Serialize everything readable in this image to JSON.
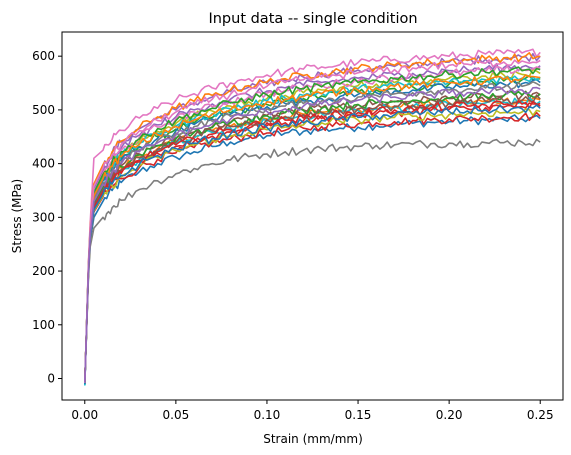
{
  "chart_data": {
    "type": "line",
    "title": "Input data -- single condition",
    "xlabel": "Strain (mm/mm)",
    "ylabel": "Stress (MPa)",
    "xlim": [
      -0.0125,
      0.2625
    ],
    "ylim": [
      -40,
      645
    ],
    "xticks": [
      0.0,
      0.05,
      0.1,
      0.15,
      0.2,
      0.25
    ],
    "xtick_labels": [
      "0.00",
      "0.05",
      "0.10",
      "0.15",
      "0.20",
      "0.25"
    ],
    "yticks": [
      0,
      100,
      200,
      300,
      400,
      500,
      600
    ],
    "ytick_labels": [
      "0",
      "100",
      "200",
      "300",
      "400",
      "500",
      "600"
    ],
    "grid": false,
    "legend": "none",
    "x": [
      0.0,
      0.001,
      0.002,
      0.003,
      0.005,
      0.01,
      0.015,
      0.02,
      0.03,
      0.04,
      0.05,
      0.06,
      0.07,
      0.08,
      0.09,
      0.1,
      0.11,
      0.12,
      0.13,
      0.14,
      0.15,
      0.16,
      0.17,
      0.18,
      0.19,
      0.2,
      0.21,
      0.22,
      0.23,
      0.24,
      0.25
    ],
    "series": [
      {
        "color": "#1f77b4",
        "values": [
          -12,
          90,
          190,
          255,
          300,
          330,
          350,
          365,
          385,
          400,
          412,
          422,
          432,
          440,
          447,
          452,
          457,
          460,
          463,
          466,
          468,
          471,
          473,
          475,
          477,
          478,
          480,
          481,
          482,
          483,
          484
        ]
      },
      {
        "color": "#ff7f0e",
        "values": [
          -8,
          95,
          200,
          265,
          325,
          355,
          375,
          392,
          412,
          428,
          441,
          452,
          462,
          470,
          477,
          483,
          488,
          492,
          496,
          499,
          502,
          505,
          507,
          509,
          511,
          513,
          514,
          516,
          517,
          518,
          519
        ]
      },
      {
        "color": "#2ca02c",
        "values": [
          -10,
          100,
          205,
          270,
          340,
          370,
          392,
          410,
          432,
          450,
          464,
          476,
          486,
          495,
          503,
          510,
          516,
          521,
          526,
          530,
          533,
          537,
          540,
          543,
          545,
          548,
          550,
          552,
          554,
          556,
          558
        ]
      },
      {
        "color": "#d62728",
        "values": [
          -6,
          92,
          195,
          258,
          310,
          338,
          357,
          372,
          393,
          408,
          420,
          430,
          439,
          446,
          452,
          457,
          462,
          466,
          469,
          472,
          474,
          476,
          478,
          480,
          481,
          483,
          484,
          485,
          486,
          487,
          488
        ]
      },
      {
        "color": "#9467bd",
        "values": [
          -9,
          98,
          208,
          280,
          360,
          395,
          420,
          440,
          465,
          485,
          500,
          513,
          524,
          534,
          542,
          549,
          555,
          561,
          566,
          570,
          574,
          578,
          581,
          584,
          587,
          589,
          592,
          594,
          596,
          598,
          600
        ]
      },
      {
        "color": "#8c564b",
        "values": [
          -7,
          96,
          200,
          266,
          330,
          360,
          380,
          396,
          418,
          434,
          448,
          459,
          469,
          477,
          484,
          490,
          495,
          500,
          504,
          507,
          510,
          513,
          515,
          517,
          519,
          521,
          523,
          524,
          526,
          527,
          528
        ]
      },
      {
        "color": "#e377c2",
        "values": [
          -11,
          102,
          215,
          290,
          410,
          425,
          445,
          462,
          485,
          503,
          518,
          530,
          541,
          550,
          558,
          565,
          571,
          576,
          580,
          584,
          588,
          591,
          594,
          596,
          598,
          600,
          602,
          604,
          605,
          606,
          607
        ]
      },
      {
        "color": "#7f7f7f",
        "values": [
          -5,
          88,
          185,
          245,
          280,
          300,
          318,
          332,
          352,
          368,
          381,
          391,
          400,
          407,
          413,
          418,
          422,
          425,
          428,
          430,
          432,
          434,
          435,
          436,
          437,
          438,
          438,
          439,
          439,
          440,
          440
        ]
      },
      {
        "color": "#bcbd22",
        "values": [
          -8,
          97,
          202,
          272,
          345,
          378,
          400,
          418,
          442,
          460,
          475,
          488,
          498,
          507,
          515,
          521,
          527,
          532,
          537,
          541,
          545,
          548,
          551,
          554,
          556,
          559,
          561,
          563,
          565,
          566,
          568
        ]
      },
      {
        "color": "#17becf",
        "values": [
          -13,
          94,
          198,
          262,
          320,
          350,
          370,
          386,
          408,
          424,
          437,
          448,
          458,
          466,
          473,
          479,
          484,
          489,
          493,
          496,
          499,
          502,
          504,
          506,
          508,
          510,
          511,
          513,
          514,
          515,
          516
        ]
      },
      {
        "color": "#1f77b4",
        "values": [
          -9,
          99,
          204,
          270,
          338,
          368,
          390,
          407,
          430,
          447,
          461,
          473,
          483,
          492,
          499,
          506,
          512,
          517,
          521,
          525,
          529,
          532,
          535,
          537,
          540,
          542,
          544,
          546,
          548,
          549,
          551
        ]
      },
      {
        "color": "#ff7f0e",
        "values": [
          -10,
          101,
          210,
          282,
          362,
          398,
          422,
          442,
          467,
          487,
          503,
          516,
          527,
          537,
          545,
          552,
          558,
          564,
          569,
          573,
          577,
          580,
          583,
          586,
          588,
          591,
          593,
          595,
          597,
          598,
          600
        ]
      },
      {
        "color": "#2ca02c",
        "values": [
          -7,
          95,
          199,
          264,
          325,
          356,
          377,
          394,
          416,
          433,
          446,
          458,
          467,
          476,
          483,
          489,
          495,
          499,
          503,
          507,
          510,
          513,
          516,
          518,
          520,
          522,
          524,
          525,
          527,
          528,
          530
        ]
      },
      {
        "color": "#d62728",
        "values": [
          -8,
          93,
          196,
          260,
          318,
          346,
          366,
          382,
          403,
          419,
          432,
          442,
          451,
          459,
          466,
          471,
          476,
          480,
          484,
          487,
          490,
          493,
          495,
          497,
          499,
          501,
          502,
          504,
          505,
          506,
          507
        ]
      },
      {
        "color": "#9467bd",
        "values": [
          -11,
          100,
          206,
          276,
          352,
          386,
          410,
          429,
          453,
          472,
          487,
          500,
          511,
          520,
          528,
          535,
          541,
          546,
          551,
          555,
          559,
          562,
          565,
          568,
          570,
          573,
          575,
          577,
          579,
          580,
          582
        ]
      },
      {
        "color": "#8c564b",
        "values": [
          -6,
          94,
          197,
          263,
          322,
          352,
          373,
          389,
          411,
          427,
          440,
          451,
          461,
          469,
          476,
          482,
          487,
          491,
          495,
          499,
          502,
          504,
          507,
          509,
          511,
          513,
          514,
          516,
          517,
          518,
          520
        ]
      },
      {
        "color": "#e377c2",
        "values": [
          -9,
          98,
          203,
          274,
          348,
          382,
          406,
          425,
          449,
          468,
          483,
          496,
          506,
          516,
          524,
          531,
          536,
          542,
          546,
          550,
          554,
          557,
          560,
          563,
          565,
          568,
          570,
          572,
          574,
          575,
          577
        ]
      },
      {
        "color": "#7f7f7f",
        "values": [
          -7,
          96,
          201,
          268,
          334,
          364,
          386,
          403,
          426,
          443,
          457,
          469,
          479,
          488,
          495,
          502,
          507,
          512,
          517,
          520,
          524,
          527,
          530,
          532,
          535,
          537,
          539,
          541,
          542,
          544,
          545
        ]
      },
      {
        "color": "#bcbd22",
        "values": [
          -10,
          92,
          194,
          258,
          312,
          340,
          359,
          375,
          396,
          412,
          424,
          435,
          444,
          451,
          458,
          463,
          468,
          472,
          476,
          479,
          481,
          484,
          486,
          488,
          490,
          491,
          493,
          494,
          495,
          496,
          497
        ]
      },
      {
        "color": "#17becf",
        "values": [
          -12,
          97,
          202,
          271,
          342,
          374,
          397,
          415,
          438,
          456,
          470,
          483,
          493,
          502,
          509,
          516,
          522,
          527,
          531,
          535,
          539,
          542,
          545,
          547,
          550,
          552,
          554,
          556,
          558,
          559,
          561
        ]
      },
      {
        "color": "#2ca02c",
        "values": [
          -8,
          99,
          205,
          273,
          346,
          380,
          403,
          422,
          446,
          465,
          480,
          493,
          503,
          513,
          521,
          528,
          534,
          539,
          543,
          548,
          551,
          555,
          558,
          561,
          563,
          566,
          568,
          570,
          572,
          573,
          575
        ]
      },
      {
        "color": "#d62728",
        "values": [
          -9,
          95,
          198,
          262,
          318,
          348,
          368,
          384,
          406,
          422,
          435,
          446,
          455,
          463,
          470,
          476,
          481,
          485,
          489,
          492,
          495,
          498,
          500,
          502,
          504,
          506,
          507,
          509,
          510,
          511,
          512
        ]
      },
      {
        "color": "#ff7f0e",
        "values": [
          -6,
          97,
          203,
          270,
          340,
          372,
          395,
          413,
          436,
          454,
          469,
          481,
          492,
          500,
          508,
          515,
          520,
          525,
          530,
          534,
          537,
          541,
          544,
          546,
          549,
          551,
          553,
          555,
          557,
          558,
          560
        ]
      },
      {
        "color": "#1f77b4",
        "values": [
          -10,
          93,
          195,
          259,
          314,
          343,
          362,
          378,
          399,
          415,
          428,
          438,
          447,
          455,
          462,
          467,
          472,
          476,
          480,
          483,
          486,
          489,
          491,
          493,
          495,
          497,
          498,
          500,
          501,
          502,
          503
        ]
      },
      {
        "color": "#e377c2",
        "values": [
          -8,
          100,
          209,
          280,
          358,
          392,
          417,
          436,
          461,
          480,
          496,
          509,
          520,
          529,
          537,
          544,
          551,
          556,
          561,
          565,
          569,
          572,
          575,
          578,
          581,
          583,
          585,
          587,
          589,
          591,
          592
        ]
      },
      {
        "color": "#9467bd",
        "values": [
          -7,
          96,
          200,
          266,
          330,
          361,
          383,
          400,
          422,
          439,
          453,
          464,
          474,
          483,
          490,
          497,
          502,
          507,
          511,
          515,
          518,
          521,
          524,
          526,
          528,
          531,
          532,
          534,
          536,
          537,
          539
        ]
      }
    ]
  }
}
